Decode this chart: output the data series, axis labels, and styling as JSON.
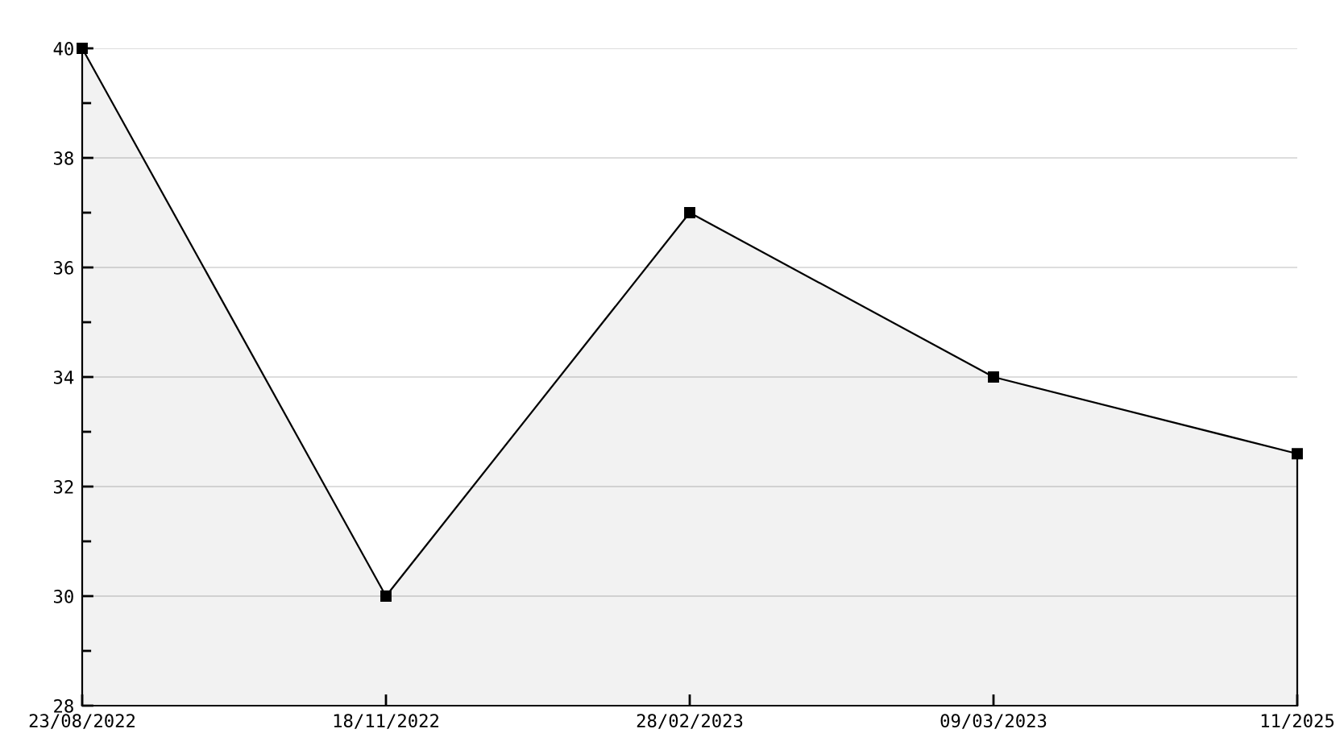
{
  "chart_data": {
    "type": "area",
    "categories": [
      "23/08/2022",
      "18/11/2022",
      "28/02/2023",
      "09/03/2023",
      "11/2025"
    ],
    "series": [
      {
        "color": "#000000",
        "values": [
          40,
          30,
          37,
          34,
          32.6
        ]
      }
    ],
    "ylim": [
      28,
      40
    ],
    "yticks": [
      28,
      30,
      32,
      34,
      36,
      38,
      40
    ],
    "grid": "y",
    "marker": "square",
    "line_style": "solid",
    "legend": false
  }
}
